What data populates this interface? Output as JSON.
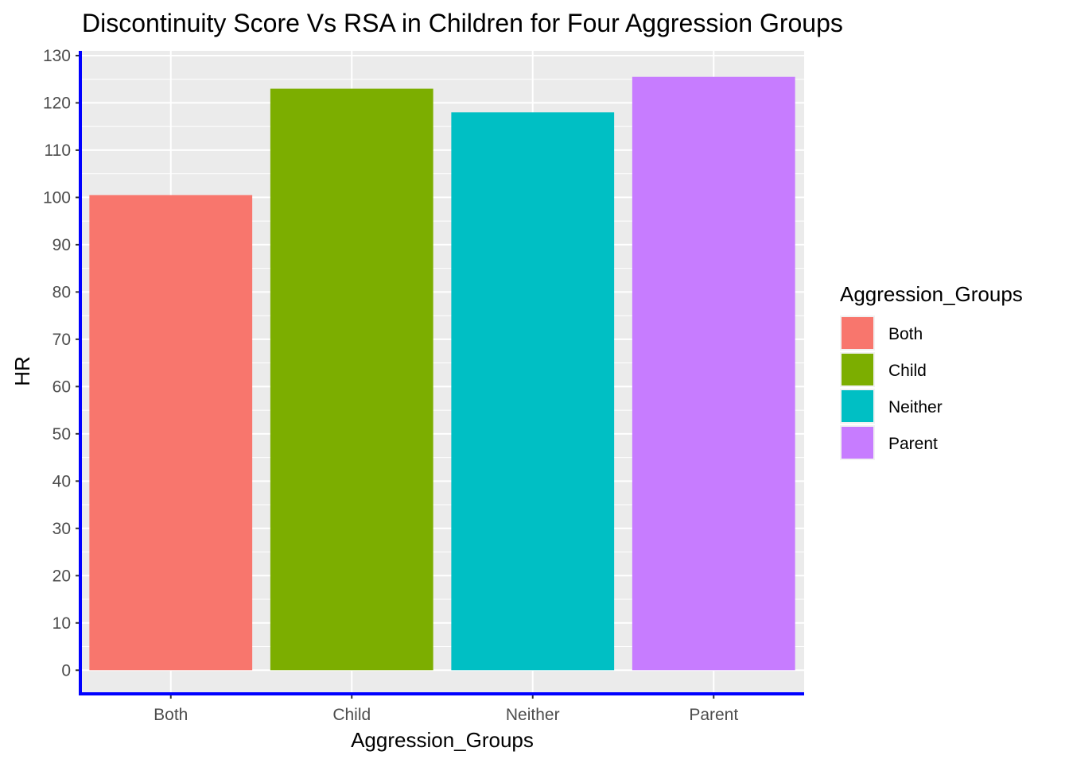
{
  "chart_data": {
    "type": "bar",
    "title": "Discontinuity Score Vs RSA in Children for Four Aggression Groups",
    "xlabel": "Aggression_Groups",
    "ylabel": "HR",
    "categories": [
      "Both",
      "Child",
      "Neither",
      "Parent"
    ],
    "values": [
      100.5,
      123,
      118,
      125.5
    ],
    "colors": [
      "#F8766D",
      "#7CAE00",
      "#00BFC4",
      "#C77CFF"
    ],
    "ylim": [
      -5,
      131
    ],
    "yticks": [
      0,
      10,
      20,
      30,
      40,
      50,
      60,
      70,
      80,
      90,
      100,
      110,
      120,
      130
    ],
    "grid": true,
    "panel_background": "#EBEBEB",
    "axis_line_color": "#0000FF",
    "legend": {
      "title": "Aggression_Groups",
      "position": "right",
      "entries": [
        "Both",
        "Child",
        "Neither",
        "Parent"
      ]
    }
  }
}
